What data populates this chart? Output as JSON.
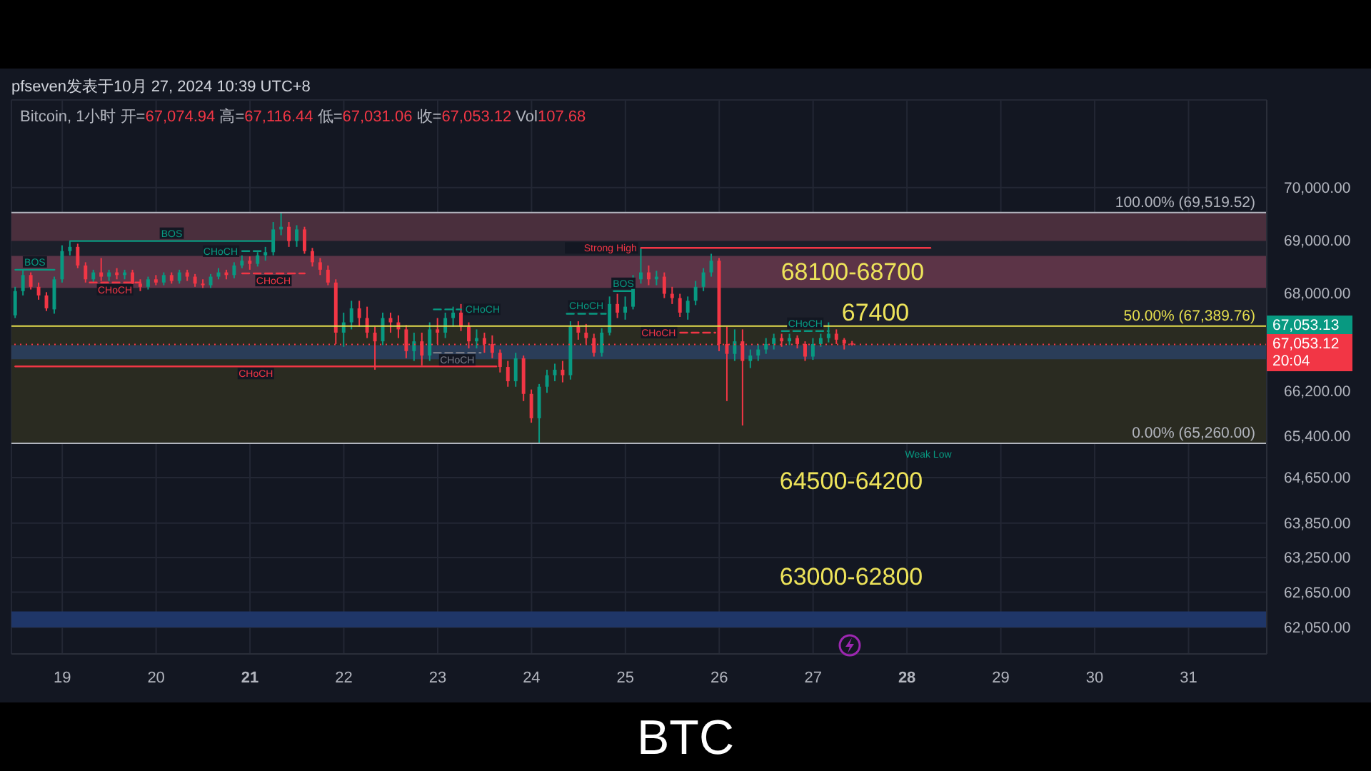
{
  "chart_data": {
    "type": "candlestick",
    "title": "pfseven发表于10月 27, 2024 10:39 UTC+8",
    "subtitle": "Bitcoin, 1小时  开=67,074.94 高=67,116.44 低=67,031.06 收=67,053.12 Vol107.68",
    "x": [
      "2024-10-18T12:00",
      "2024-10-18T14:00",
      "2024-10-18T16:00",
      "2024-10-18T18:00",
      "2024-10-18T20:00",
      "2024-10-18T22:00",
      "2024-10-19T00:00",
      "2024-10-19T02:00",
      "2024-10-19T04:00",
      "2024-10-19T06:00",
      "2024-10-19T08:00",
      "2024-10-19T10:00",
      "2024-10-19T12:00",
      "2024-10-19T14:00",
      "2024-10-19T16:00",
      "2024-10-19T18:00",
      "2024-10-19T20:00",
      "2024-10-19T22:00",
      "2024-10-20T00:00",
      "2024-10-20T02:00",
      "2024-10-20T04:00",
      "2024-10-20T06:00",
      "2024-10-20T08:00",
      "2024-10-20T10:00",
      "2024-10-20T12:00",
      "2024-10-20T14:00",
      "2024-10-20T16:00",
      "2024-10-20T18:00",
      "2024-10-20T20:00",
      "2024-10-20T22:00",
      "2024-10-21T00:00",
      "2024-10-21T02:00",
      "2024-10-21T04:00",
      "2024-10-21T06:00",
      "2024-10-21T08:00",
      "2024-10-21T10:00",
      "2024-10-21T12:00",
      "2024-10-21T14:00",
      "2024-10-21T16:00",
      "2024-10-21T18:00",
      "2024-10-21T20:00",
      "2024-10-21T22:00",
      "2024-10-22T00:00",
      "2024-10-22T02:00",
      "2024-10-22T04:00",
      "2024-10-22T06:00",
      "2024-10-22T08:00",
      "2024-10-22T10:00",
      "2024-10-22T12:00",
      "2024-10-22T14:00",
      "2024-10-22T16:00",
      "2024-10-22T18:00",
      "2024-10-22T20:00",
      "2024-10-22T22:00",
      "2024-10-23T00:00",
      "2024-10-23T02:00",
      "2024-10-23T04:00",
      "2024-10-23T06:00",
      "2024-10-23T08:00",
      "2024-10-23T10:00",
      "2024-10-23T12:00",
      "2024-10-23T14:00",
      "2024-10-23T16:00",
      "2024-10-23T18:00",
      "2024-10-23T20:00",
      "2024-10-23T22:00",
      "2024-10-24T00:00",
      "2024-10-24T02:00",
      "2024-10-24T04:00",
      "2024-10-24T06:00",
      "2024-10-24T08:00",
      "2024-10-24T10:00",
      "2024-10-24T12:00",
      "2024-10-24T14:00",
      "2024-10-24T16:00",
      "2024-10-24T18:00",
      "2024-10-24T20:00",
      "2024-10-24T22:00",
      "2024-10-25T00:00",
      "2024-10-25T02:00",
      "2024-10-25T04:00",
      "2024-10-25T06:00",
      "2024-10-25T08:00",
      "2024-10-25T10:00",
      "2024-10-25T12:00",
      "2024-10-25T14:00",
      "2024-10-25T16:00",
      "2024-10-25T18:00",
      "2024-10-25T20:00",
      "2024-10-25T22:00",
      "2024-10-26T00:00",
      "2024-10-26T02:00",
      "2024-10-26T04:00",
      "2024-10-26T06:00",
      "2024-10-26T08:00",
      "2024-10-26T10:00",
      "2024-10-26T12:00",
      "2024-10-26T14:00",
      "2024-10-26T16:00",
      "2024-10-26T18:00",
      "2024-10-26T20:00",
      "2024-10-26T22:00",
      "2024-10-27T00:00",
      "2024-10-27T02:00",
      "2024-10-27T04:00",
      "2024-10-27T06:00",
      "2024-10-27T08:00",
      "2024-10-27T10:00"
    ],
    "ohlc": [
      [
        67590,
        68120,
        67540,
        68040
      ],
      [
        68040,
        68440,
        67960,
        68340
      ],
      [
        68340,
        68390,
        68070,
        68120
      ],
      [
        68120,
        68200,
        67880,
        67960
      ],
      [
        67960,
        68020,
        67670,
        67720
      ],
      [
        67700,
        68310,
        67620,
        68260
      ],
      [
        68260,
        68900,
        68200,
        68790
      ],
      [
        68790,
        68980,
        68710,
        68870
      ],
      [
        68870,
        68930,
        68470,
        68520
      ],
      [
        68520,
        68580,
        68200,
        68260
      ],
      [
        68260,
        68440,
        68200,
        68390
      ],
      [
        68390,
        68660,
        68230,
        68310
      ],
      [
        68310,
        68440,
        68230,
        68390
      ],
      [
        68390,
        68470,
        68260,
        68340
      ],
      [
        68340,
        68440,
        68260,
        68390
      ],
      [
        68390,
        68440,
        68100,
        68180
      ],
      [
        68180,
        68260,
        68040,
        68120
      ],
      [
        68120,
        68310,
        68070,
        68260
      ],
      [
        68260,
        68340,
        68150,
        68200
      ],
      [
        68200,
        68390,
        68150,
        68340
      ],
      [
        68340,
        68390,
        68180,
        68230
      ],
      [
        68230,
        68440,
        68180,
        68390
      ],
      [
        68390,
        68440,
        68230,
        68310
      ],
      [
        68310,
        68360,
        68120,
        68180
      ],
      [
        68180,
        68260,
        68100,
        68150
      ],
      [
        68150,
        68360,
        68100,
        68310
      ],
      [
        68310,
        68470,
        68260,
        68390
      ],
      [
        68390,
        68440,
        68260,
        68340
      ],
      [
        68340,
        68580,
        68280,
        68520
      ],
      [
        68520,
        68710,
        68470,
        68610
      ],
      [
        68610,
        68690,
        68440,
        68550
      ],
      [
        68550,
        68770,
        68500,
        68710
      ],
      [
        68710,
        68870,
        68610,
        68770
      ],
      [
        68770,
        69340,
        68710,
        69200
      ],
      [
        69200,
        69519.52,
        69090,
        69250
      ],
      [
        69250,
        69340,
        68870,
        68980
      ],
      [
        68980,
        69280,
        68870,
        69200
      ],
      [
        69200,
        69250,
        68740,
        68790
      ],
      [
        68790,
        68850,
        68500,
        68580
      ],
      [
        68580,
        68660,
        68340,
        68440
      ],
      [
        68440,
        68520,
        68150,
        68200
      ],
      [
        68200,
        68260,
        67060,
        67270
      ],
      [
        67270,
        67640,
        67010,
        67460
      ],
      [
        67460,
        67860,
        67330,
        67720
      ],
      [
        67720,
        67860,
        67380,
        67540
      ],
      [
        67540,
        67750,
        67170,
        67270
      ],
      [
        67270,
        67380,
        66590,
        67110
      ],
      [
        67110,
        67640,
        67040,
        67540
      ],
      [
        67540,
        67640,
        67270,
        67460
      ],
      [
        67460,
        67590,
        67170,
        67330
      ],
      [
        67330,
        67410,
        66800,
        66930
      ],
      [
        66930,
        67270,
        66750,
        67110
      ],
      [
        67110,
        67270,
        66670,
        66850
      ],
      [
        66850,
        67460,
        66750,
        67330
      ],
      [
        67330,
        67540,
        67060,
        67270
      ],
      [
        67270,
        67640,
        67170,
        67540
      ],
      [
        67540,
        67750,
        67380,
        67640
      ],
      [
        67640,
        67800,
        67300,
        67380
      ],
      [
        67380,
        67460,
        66980,
        67110
      ],
      [
        67110,
        67330,
        66980,
        67170
      ],
      [
        67170,
        67270,
        66900,
        67060
      ],
      [
        67060,
        67220,
        66800,
        66900
      ],
      [
        66900,
        66960,
        66540,
        66640
      ],
      [
        66640,
        66750,
        66280,
        66380
      ],
      [
        66380,
        66900,
        66280,
        66800
      ],
      [
        66800,
        66850,
        66020,
        66150
      ],
      [
        66150,
        66230,
        65630,
        65710
      ],
      [
        65710,
        66330,
        65260,
        66280
      ],
      [
        66280,
        66590,
        66170,
        66490
      ],
      [
        66490,
        66700,
        66380,
        66590
      ],
      [
        66590,
        66750,
        66360,
        66490
      ],
      [
        66490,
        67480,
        66410,
        67380
      ],
      [
        67380,
        67480,
        67140,
        67270
      ],
      [
        67270,
        67430,
        67060,
        67170
      ],
      [
        67170,
        67250,
        66830,
        66900
      ],
      [
        66900,
        67350,
        66830,
        67270
      ],
      [
        67270,
        67940,
        67220,
        67800
      ],
      [
        67800,
        67990,
        67540,
        67640
      ],
      [
        67640,
        67940,
        67510,
        67750
      ],
      [
        67750,
        68340,
        67700,
        68260
      ],
      [
        68260,
        68850,
        68180,
        68390
      ],
      [
        68390,
        68520,
        68150,
        68260
      ],
      [
        68260,
        68420,
        68150,
        68310
      ],
      [
        68310,
        68390,
        67910,
        67990
      ],
      [
        67990,
        68120,
        67800,
        67910
      ],
      [
        67910,
        67990,
        67560,
        67640
      ],
      [
        67640,
        67940,
        67510,
        67860
      ],
      [
        67860,
        68230,
        67780,
        68120
      ],
      [
        68120,
        68470,
        68040,
        68390
      ],
      [
        68390,
        68740,
        68310,
        68610
      ],
      [
        68610,
        68660,
        66930,
        67060
      ],
      [
        67060,
        67380,
        66020,
        66880
      ],
      [
        66880,
        67330,
        66750,
        67110
      ],
      [
        67110,
        67330,
        65580,
        66750
      ],
      [
        66750,
        66960,
        66620,
        66850
      ],
      [
        66850,
        67060,
        66750,
        66960
      ],
      [
        66960,
        67170,
        66880,
        67060
      ],
      [
        67060,
        67250,
        66960,
        67170
      ],
      [
        67170,
        67250,
        67010,
        67110
      ],
      [
        67110,
        67250,
        67040,
        67170
      ],
      [
        67170,
        67220,
        66980,
        67060
      ],
      [
        67060,
        67110,
        66750,
        66830
      ],
      [
        66830,
        67170,
        66770,
        67060
      ],
      [
        67060,
        67250,
        67010,
        67170
      ],
      [
        67170,
        67460,
        67090,
        67250
      ],
      [
        67250,
        67330,
        67060,
        67140
      ],
      [
        67140,
        67170,
        66960,
        67070
      ],
      [
        67074.94,
        67116.44,
        67031.06,
        67053.12
      ]
    ],
    "colors": [
      "#089981",
      "#089981",
      "#f23645",
      "#f23645",
      "#f23645",
      "#089981",
      "#089981",
      "#089981",
      "#f23645",
      "#f23645",
      "#089981",
      "#f23645",
      "#089981",
      "#f23645",
      "#089981",
      "#f23645",
      "#f23645",
      "#089981",
      "#f23645",
      "#089981",
      "#f23645",
      "#089981",
      "#f23645",
      "#f23645",
      "#f23645",
      "#089981",
      "#089981",
      "#f23645",
      "#089981",
      "#089981",
      "#f23645",
      "#089981",
      "#089981",
      "#089981",
      "#089981",
      "#f23645",
      "#089981",
      "#f23645",
      "#f23645",
      "#f23645",
      "#f23645",
      "#f23645",
      "#089981",
      "#089981",
      "#f23645",
      "#f23645",
      "#f23645",
      "#089981",
      "#f23645",
      "#f23645",
      "#f23645",
      "#089981",
      "#f23645",
      "#089981",
      "#f23645",
      "#089981",
      "#089981",
      "#f23645",
      "#f23645",
      "#089981",
      "#f23645",
      "#f23645",
      "#f23645",
      "#f23645",
      "#089981",
      "#f23645",
      "#f23645",
      "#089981",
      "#089981",
      "#089981",
      "#f23645",
      "#089981",
      "#f23645",
      "#f23645",
      "#f23645",
      "#089981",
      "#089981",
      "#f23645",
      "#089981",
      "#089981",
      "#089981",
      "#f23645",
      "#089981",
      "#f23645",
      "#f23645",
      "#f23645",
      "#089981",
      "#089981",
      "#089981",
      "#089981",
      "#f23645",
      "#f23645",
      "#089981",
      "#f23645",
      "#089981",
      "#089981",
      "#089981",
      "#089981",
      "#f23645",
      "#089981",
      "#f23645",
      "#f23645",
      "#089981",
      "#089981",
      "#089981",
      "#f23645",
      "#f23645",
      "#f23645"
    ],
    "series": [
      {
        "type": "line",
        "name": "BOS",
        "color": "#089981",
        "x": [
          "2024-10-19T02:00",
          "2024-10-21T06:00"
        ],
        "values": [
          68980,
          68980
        ]
      },
      {
        "type": "line",
        "name": "BOS",
        "color": "#089981",
        "x": [
          "2024-10-18T12:00",
          "2024-10-18T22:00"
        ],
        "values": [
          68440,
          68440
        ]
      },
      {
        "type": "line",
        "name": "CHoCH",
        "color": "#f23645",
        "x": [
          "2024-10-18T12:00",
          "2024-10-23T15:00"
        ],
        "values": [
          66650,
          66650
        ]
      },
      {
        "type": "line",
        "name": "CHoCH",
        "color": "#089981",
        "line_style": "dashed",
        "x": [
          "2024-10-20T22:00",
          "2024-10-21T03:00"
        ],
        "values": [
          68790,
          68790
        ]
      },
      {
        "type": "line",
        "name": "CHoCH",
        "color": "#f23645",
        "line_style": "dashed",
        "x": [
          "2024-10-19T07:00",
          "2024-10-19T20:00"
        ],
        "values": [
          68200,
          68200
        ]
      },
      {
        "type": "line",
        "name": "CHoCH",
        "color": "#f23645",
        "line_style": "dashed",
        "x": [
          "2024-10-20T22:00",
          "2024-10-21T14:00"
        ],
        "values": [
          68370,
          68370
        ]
      },
      {
        "type": "line",
        "name": "CHoCH",
        "color": "#089981",
        "line_style": "dashed",
        "x": [
          "2024-10-22T23:00",
          "2024-10-23T06:00"
        ],
        "values": [
          67700,
          67700
        ]
      },
      {
        "type": "line",
        "name": "CHoCH",
        "color": "#787b86",
        "line_style": "dashed",
        "x": [
          "2024-10-22T23:00",
          "2024-10-23T11:00"
        ],
        "values": [
          66900,
          66900
        ]
      },
      {
        "type": "line",
        "name": "CHoCH",
        "color": "#089981",
        "line_style": "dashed",
        "x": [
          "2024-10-24T09:00",
          "2024-10-24T19:00"
        ],
        "values": [
          67620,
          67620
        ]
      },
      {
        "type": "line",
        "name": "BOS",
        "color": "#089981",
        "x": [
          "2024-10-24T21:00",
          "2024-10-25T02:00"
        ],
        "values": [
          68040,
          68040
        ]
      },
      {
        "type": "line",
        "name": "CHoCH",
        "color": "#f23645",
        "line_style": "dashed",
        "x": [
          "2024-10-25T14:00",
          "2024-10-25T23:00"
        ],
        "values": [
          67270,
          67270
        ]
      },
      {
        "type": "line",
        "name": "CHoCH",
        "color": "#089981",
        "line_style": "dashed",
        "x": [
          "2024-10-26T16:00",
          "2024-10-27T04:00"
        ],
        "values": [
          67300,
          67300
        ]
      },
      {
        "type": "line",
        "name": "Strong High",
        "color": "#f23645",
        "x": [
          "2024-10-25T04:00",
          "2024-10-28T06:00"
        ],
        "values": [
          68850,
          68850
        ]
      }
    ],
    "xlim": [
      "2024-10-18T11:00",
      "2024-10-31T20:00"
    ],
    "xticks": [
      {
        "value": "2024-10-19",
        "label": "19"
      },
      {
        "value": "2024-10-20",
        "label": "20"
      },
      {
        "value": "2024-10-21",
        "label": "21"
      },
      {
        "value": "2024-10-22",
        "label": "22"
      },
      {
        "value": "2024-10-23",
        "label": "23"
      },
      {
        "value": "2024-10-24",
        "label": "24"
      },
      {
        "value": "2024-10-25",
        "label": "25"
      },
      {
        "value": "2024-10-26",
        "label": "26"
      },
      {
        "value": "2024-10-27",
        "label": "27"
      },
      {
        "value": "2024-10-28",
        "label": "28"
      },
      {
        "value": "2024-10-29",
        "label": "29"
      },
      {
        "value": "2024-10-30",
        "label": "30"
      },
      {
        "value": "2024-10-31",
        "label": "31"
      }
    ],
    "ylim": [
      61600,
      71700
    ],
    "log": true,
    "yticks": [
      {
        "value": 70000,
        "label": "70,000.00"
      },
      {
        "value": 69000,
        "label": "69,000.00"
      },
      {
        "value": 68000,
        "label": "68,000.00"
      },
      {
        "value": 66200,
        "label": "66,200.00"
      },
      {
        "value": 65400,
        "label": "65,400.00"
      },
      {
        "value": 64650,
        "label": "64,650.00"
      },
      {
        "value": 63850,
        "label": "63,850.00"
      },
      {
        "value": 63250,
        "label": "63,250.00"
      },
      {
        "value": 62650,
        "label": "62,650.00"
      },
      {
        "value": 62050,
        "label": "62,050.00"
      }
    ],
    "grid": true,
    "bands": [
      {
        "axis": "y",
        "from": 68980,
        "to": 69519.52,
        "color": "#4a2f3d"
      },
      {
        "axis": "y",
        "from": 67389.76,
        "to": 68980,
        "color": "#1c1f2a"
      },
      {
        "axis": "y",
        "from": 65260,
        "to": 67389.76,
        "color": "#2a2b21"
      },
      {
        "axis": "y",
        "from": 68100,
        "to": 68700,
        "color": "#5c3447",
        "label": "68100-68700"
      },
      {
        "axis": "y",
        "from": 66780,
        "to": 67040,
        "color": "#2a3d58"
      },
      {
        "axis": "y",
        "from": 62050,
        "to": 62320,
        "color": "#1f3668"
      }
    ],
    "ref_lines": [
      {
        "axis": "y",
        "value": 69519.52,
        "label": "100.00% (69,519.52)",
        "color": "#b2b5be"
      },
      {
        "axis": "y",
        "value": 67389.76,
        "label": "50.00% (67,389.76)",
        "color": "#e6df4e"
      },
      {
        "axis": "y",
        "value": 65260,
        "label": "0.00% (65,260.00)",
        "color": "#b2b5be"
      },
      {
        "axis": "y",
        "value": 67053.12,
        "color": "#f23645",
        "line_style": "dotted"
      }
    ],
    "annotations": [
      "67400",
      "64500-64200",
      "63000-62800",
      "Weak Low",
      "67,053.13",
      "67,053.12\n20:04",
      "BTC"
    ]
  }
}
